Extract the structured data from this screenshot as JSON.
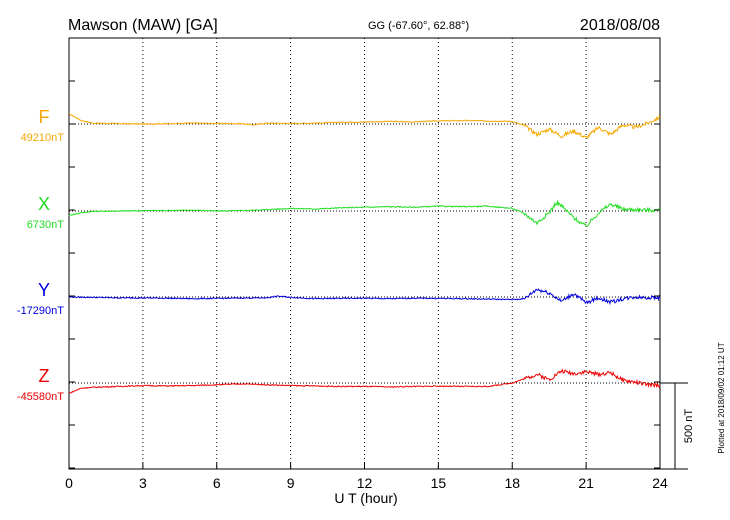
{
  "header": {
    "title": "Mawson (MAW)  [GA]",
    "coords": "GG (-67.60°,  62.88°)",
    "date": "2018/08/08"
  },
  "footer": {
    "plotted": "Plotted at 2018/09/02 01:12 UT"
  },
  "chart_data": {
    "type": "line",
    "title": "Mawson (MAW)  [GA]",
    "xlabel": "U T (hour)",
    "xlim": [
      0,
      24
    ],
    "xticks": [
      0,
      3,
      6,
      9,
      12,
      15,
      18,
      21,
      24
    ],
    "xtick_labels": [
      "0",
      "3",
      "6",
      "9",
      "12",
      "15",
      "18",
      "21",
      "24"
    ],
    "grid": "vertical dotted at 3-hour intervals; dotted baseline per component",
    "scale_bar": {
      "value": 500,
      "label": "500 nT"
    },
    "series": [
      {
        "name": "F",
        "baseline_label": "49210nT",
        "baseline": 49210,
        "color": "#f5a800",
        "x": [
          0,
          0.5,
          1,
          2,
          3,
          4,
          5,
          6,
          7,
          7.5,
          8,
          9,
          10,
          11,
          12,
          13,
          14,
          15,
          16,
          17,
          18,
          18.5,
          19,
          19.5,
          20,
          20.5,
          21,
          21.5,
          22,
          22.5,
          23,
          23.5,
          24
        ],
        "y": [
          49270,
          49230,
          49215,
          49212,
          49210,
          49212,
          49215,
          49213,
          49212,
          49205,
          49215,
          49213,
          49215,
          49220,
          49222,
          49225,
          49222,
          49228,
          49230,
          49228,
          49225,
          49200,
          49150,
          49180,
          49140,
          49170,
          49130,
          49190,
          49150,
          49205,
          49190,
          49215,
          49250
        ]
      },
      {
        "name": "X",
        "baseline_label": "6730nT",
        "baseline": 6730,
        "color": "#22dd22",
        "x": [
          0,
          0.5,
          1,
          2,
          3,
          4,
          5,
          6,
          7,
          8,
          9,
          10,
          11,
          12,
          13,
          14,
          15,
          16,
          17,
          18,
          18.5,
          19,
          19.5,
          19.8,
          20,
          20.5,
          21,
          21.5,
          22,
          22.5,
          23,
          23.5,
          24
        ],
        "y": [
          6705,
          6720,
          6728,
          6730,
          6732,
          6733,
          6735,
          6730,
          6732,
          6738,
          6745,
          6742,
          6748,
          6752,
          6755,
          6752,
          6758,
          6755,
          6758,
          6745,
          6715,
          6660,
          6720,
          6780,
          6760,
          6690,
          6640,
          6720,
          6770,
          6740,
          6738,
          6735,
          6735
        ]
      },
      {
        "name": "Y",
        "baseline_label": "-17290nT",
        "baseline": -17290,
        "color": "#0000dd",
        "x": [
          0,
          1,
          2,
          3,
          4,
          5,
          6,
          7,
          8,
          8.5,
          9,
          10,
          11,
          12,
          13,
          14,
          15,
          16,
          17,
          18,
          18.5,
          19,
          19.5,
          20,
          20.5,
          21,
          21.5,
          22,
          22.5,
          23,
          24
        ],
        "y": [
          -17290,
          -17292,
          -17295,
          -17295,
          -17297,
          -17300,
          -17298,
          -17296,
          -17295,
          -17285,
          -17292,
          -17300,
          -17298,
          -17297,
          -17300,
          -17297,
          -17298,
          -17300,
          -17302,
          -17305,
          -17300,
          -17245,
          -17265,
          -17315,
          -17270,
          -17325,
          -17295,
          -17320,
          -17300,
          -17290,
          -17295
        ]
      },
      {
        "name": "Z",
        "baseline_label": "-45580nT",
        "baseline": -45580,
        "color": "#ee0000",
        "x": [
          0,
          0.5,
          1,
          2,
          3,
          4,
          5,
          6,
          7,
          8,
          9,
          10,
          11,
          12,
          13,
          14,
          15,
          16,
          17,
          18,
          18.5,
          19,
          19.5,
          20,
          20.5,
          21,
          21.5,
          22,
          22.5,
          23,
          23.5,
          24
        ],
        "y": [
          -45640,
          -45610,
          -45605,
          -45600,
          -45595,
          -45597,
          -45595,
          -45590,
          -45585,
          -45590,
          -45595,
          -45597,
          -45600,
          -45600,
          -45603,
          -45600,
          -45598,
          -45600,
          -45600,
          -45580,
          -45555,
          -45530,
          -45560,
          -45510,
          -45525,
          -45515,
          -45530,
          -45520,
          -45565,
          -45575,
          -45590,
          -45595
        ]
      }
    ]
  }
}
